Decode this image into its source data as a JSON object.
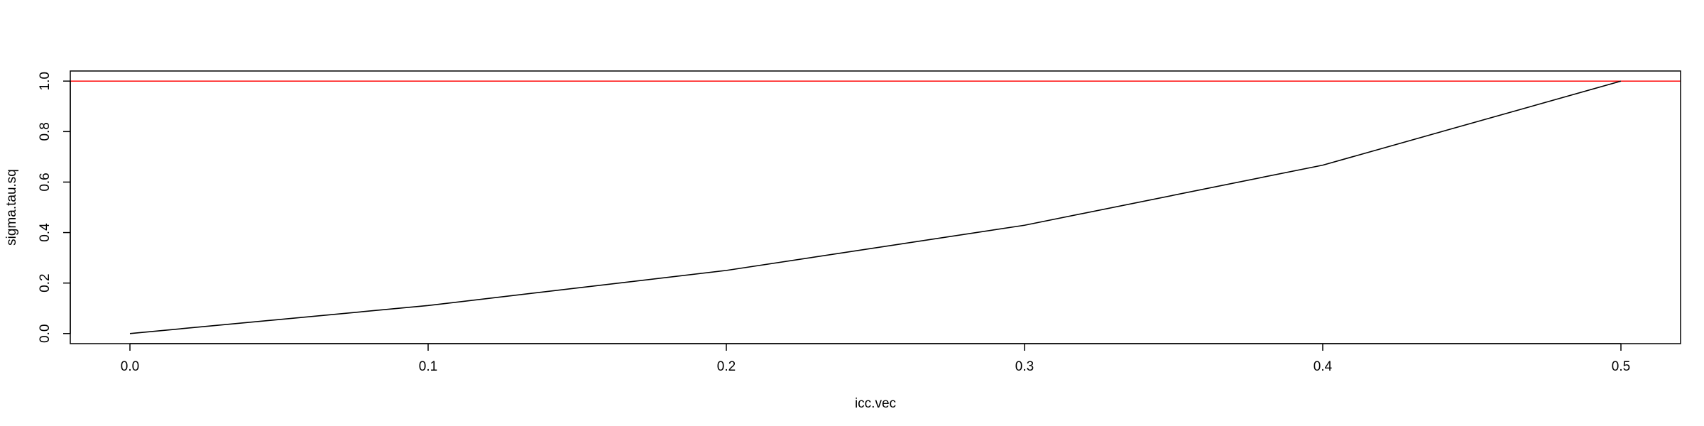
{
  "chart_data": {
    "type": "line",
    "title": "",
    "xlabel": "icc.vec",
    "ylabel": "sigma.tau.sq",
    "x": [
      0.0,
      0.1,
      0.2,
      0.3,
      0.4,
      0.5
    ],
    "series": [
      {
        "values": [
          0.0,
          0.111,
          0.25,
          0.429,
          0.667,
          1.0
        ],
        "color": "#000000"
      }
    ],
    "reference_lines": [
      {
        "axis": "y",
        "value": 1.0,
        "color": "#ff0000"
      }
    ],
    "xlim": [
      -0.02,
      0.52
    ],
    "ylim": [
      -0.04,
      1.04
    ],
    "x_ticks": [
      0.0,
      0.1,
      0.2,
      0.3,
      0.4,
      0.5
    ],
    "x_tick_labels": [
      "0.0",
      "0.1",
      "0.2",
      "0.3",
      "0.4",
      "0.5"
    ],
    "y_ticks": [
      0.0,
      0.2,
      0.4,
      0.6,
      0.8,
      1.0
    ],
    "y_tick_labels": [
      "0.0",
      "0.2",
      "0.4",
      "0.6",
      "0.8",
      "1.0"
    ],
    "grid": false,
    "legend": "none"
  }
}
